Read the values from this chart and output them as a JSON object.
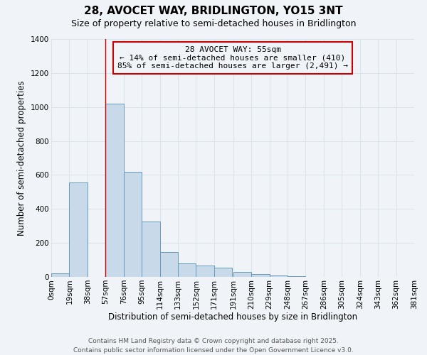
{
  "title": "28, AVOCET WAY, BRIDLINGTON, YO15 3NT",
  "subtitle": "Size of property relative to semi-detached houses in Bridlington",
  "xlabel": "Distribution of semi-detached houses by size in Bridlington",
  "ylabel": "Number of semi-detached properties",
  "bar_color": "#c8daea",
  "bar_edge_color": "#6699bb",
  "background_color": "#f0f4f8",
  "grid_color": "#d8e4ee",
  "annotation_box_color": "#cc0000",
  "vline_color": "#cc0000",
  "bin_edges": [
    0,
    19,
    38,
    57,
    76,
    95,
    114,
    133,
    152,
    171,
    191,
    210,
    229,
    248,
    267,
    286,
    305,
    324,
    343,
    362,
    381
  ],
  "bin_labels": [
    "0sqm",
    "19sqm",
    "38sqm",
    "57sqm",
    "76sqm",
    "95sqm",
    "114sqm",
    "133sqm",
    "152sqm",
    "171sqm",
    "191sqm",
    "210sqm",
    "229sqm",
    "248sqm",
    "267sqm",
    "286sqm",
    "305sqm",
    "324sqm",
    "343sqm",
    "362sqm",
    "381sqm"
  ],
  "bar_heights": [
    20,
    555,
    0,
    1020,
    620,
    325,
    148,
    80,
    65,
    55,
    30,
    15,
    10,
    5,
    0,
    0,
    0,
    0,
    0,
    0
  ],
  "ylim": [
    0,
    1400
  ],
  "yticks": [
    0,
    200,
    400,
    600,
    800,
    1000,
    1200,
    1400
  ],
  "vline_x": 57,
  "annotation_title": "28 AVOCET WAY: 55sqm",
  "annotation_line1": "← 14% of semi-detached houses are smaller (410)",
  "annotation_line2": "85% of semi-detached houses are larger (2,491) →",
  "footer_line1": "Contains HM Land Registry data © Crown copyright and database right 2025.",
  "footer_line2": "Contains public sector information licensed under the Open Government Licence v3.0.",
  "title_fontsize": 11,
  "subtitle_fontsize": 9,
  "annotation_fontsize": 8,
  "axis_label_fontsize": 8.5,
  "tick_fontsize": 7.5,
  "footer_fontsize": 6.5
}
